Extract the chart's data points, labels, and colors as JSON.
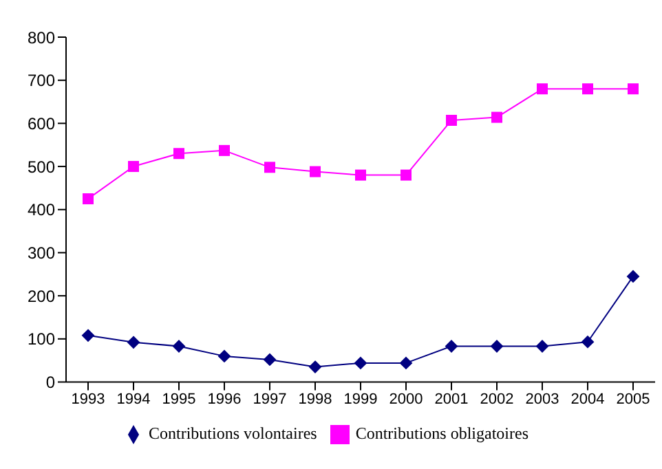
{
  "chart_data": {
    "type": "line",
    "categories": [
      "1993",
      "1994",
      "1995",
      "1996",
      "1997",
      "1998",
      "1999",
      "2000",
      "2001",
      "2002",
      "2003",
      "2004",
      "2005"
    ],
    "series": [
      {
        "name": "Contributions volontaires",
        "color": "#000080",
        "marker": "diamond",
        "values": [
          108,
          92,
          83,
          60,
          52,
          35,
          44,
          44,
          83,
          83,
          83,
          93,
          245
        ]
      },
      {
        "name": "Contributions obligatoires",
        "color": "#ff00ff",
        "marker": "square",
        "values": [
          425,
          500,
          530,
          537,
          498,
          488,
          480,
          480,
          607,
          614,
          680,
          680,
          680
        ]
      }
    ],
    "ylim": [
      0,
      800
    ],
    "yticks": [
      0,
      100,
      200,
      300,
      400,
      500,
      600,
      700,
      800
    ],
    "grid": false,
    "legend": "bottom"
  }
}
